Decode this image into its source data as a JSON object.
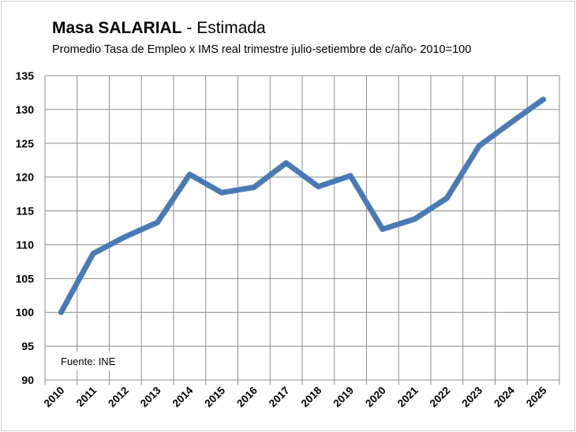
{
  "chart_data": {
    "type": "line",
    "title_bold": "Masa SALARIAL",
    "title_rest": " - Estimada",
    "subtitle": "Promedio Tasa de Empleo x IMS real trimestre julio-setiembre de c/año- 2010=100",
    "source_note": "Fuente: INE",
    "categories": [
      "2010",
      "2011",
      "2012",
      "2013",
      "2014",
      "2015",
      "2016",
      "2017",
      "2018",
      "2019",
      "2020",
      "2021",
      "2022",
      "2023",
      "2024",
      "2025"
    ],
    "values": [
      100,
      108.7,
      111.2,
      113.3,
      120.4,
      117.7,
      118.5,
      122.1,
      118.6,
      120.2,
      112.3,
      113.8,
      116.9,
      124.6,
      128.1,
      131.5
    ],
    "ylim": [
      90,
      135
    ],
    "yticks": [
      90,
      95,
      100,
      105,
      110,
      115,
      120,
      125,
      130,
      135
    ],
    "grid": true,
    "legend": "none",
    "line_color": "#4a7ab5"
  }
}
